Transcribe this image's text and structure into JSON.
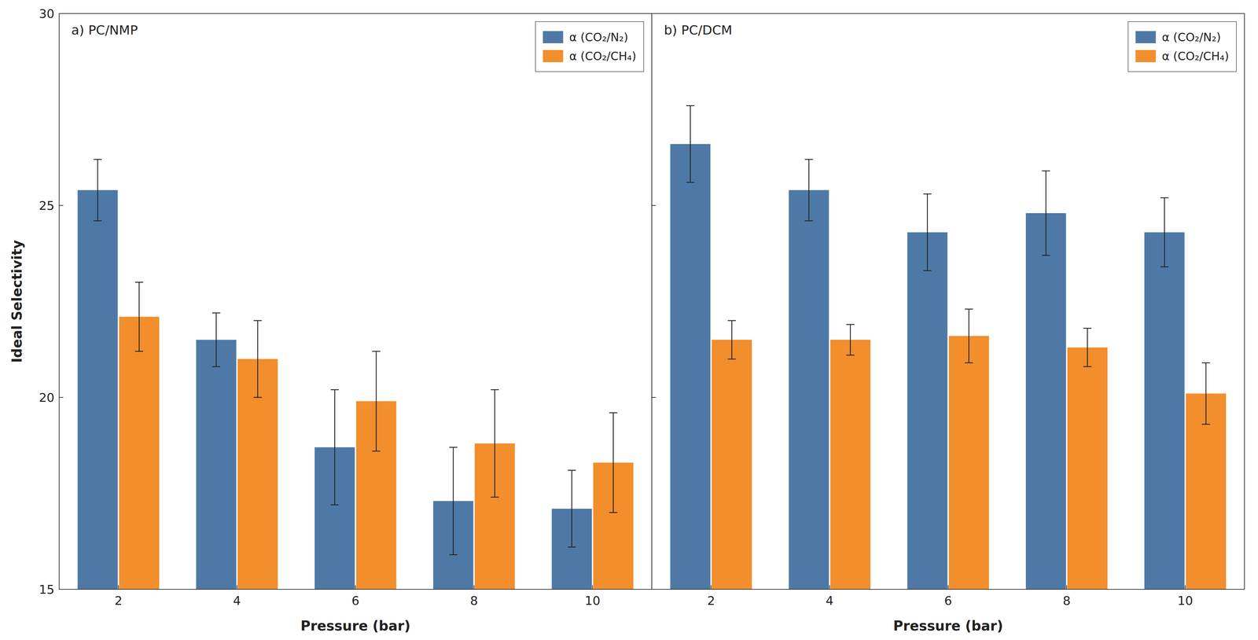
{
  "chart_data": [
    {
      "type": "bar",
      "title": "a) PC/NMP",
      "categories": [
        "2",
        "4",
        "6",
        "8",
        "10"
      ],
      "series": [
        {
          "name": "α (CO₂/N₂)",
          "values": [
            25.4,
            21.5,
            18.7,
            17.3,
            17.1
          ],
          "errors": [
            0.8,
            0.7,
            1.5,
            1.4,
            1.0
          ]
        },
        {
          "name": "α (CO₂/CH₄)",
          "values": [
            22.1,
            21.0,
            19.9,
            18.8,
            18.3
          ],
          "errors": [
            0.9,
            1.0,
            1.3,
            1.4,
            1.3
          ]
        }
      ],
      "xlabel": "Pressure (bar)",
      "ylabel": "Ideal Selectivity",
      "ylim": [
        15,
        30
      ],
      "yticks": [
        15,
        20,
        25,
        30
      ],
      "grid": false,
      "legend": "upper right"
    },
    {
      "type": "bar",
      "title": "b) PC/DCM",
      "categories": [
        "2",
        "4",
        "6",
        "8",
        "10"
      ],
      "series": [
        {
          "name": "α (CO₂/N₂)",
          "values": [
            26.6,
            25.4,
            24.3,
            24.8,
            24.3
          ],
          "errors": [
            1.0,
            0.8,
            1.0,
            1.1,
            0.9
          ]
        },
        {
          "name": "α (CO₂/CH₄)",
          "values": [
            21.5,
            21.5,
            21.6,
            21.3,
            20.1
          ],
          "errors": [
            0.5,
            0.4,
            0.7,
            0.5,
            0.8
          ]
        }
      ],
      "xlabel": "Pressure (bar)",
      "ylim": [
        15,
        30
      ],
      "yticks": [
        15,
        20,
        25,
        30
      ],
      "grid": false,
      "legend": "upper right",
      "tick_labels": "x"
    }
  ]
}
